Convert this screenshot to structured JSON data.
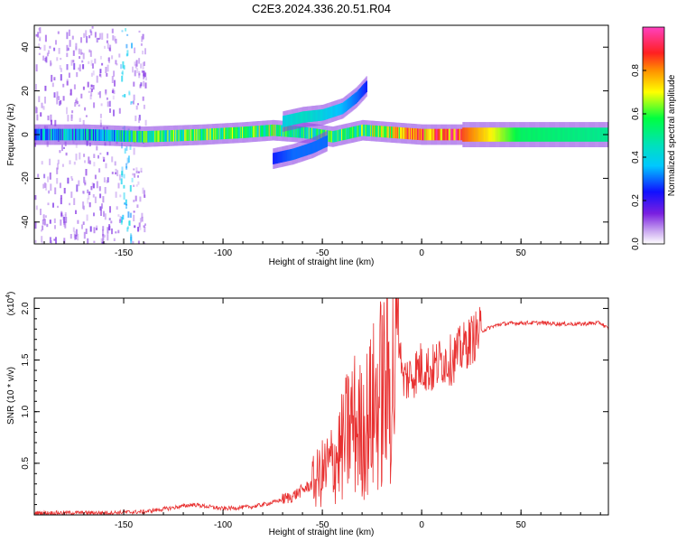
{
  "title": "C2E3.2024.336.20.51.R04",
  "chart_data": [
    {
      "type": "heatmap",
      "xlabel": "Height of straight line (km)",
      "ylabel": "Frequency (Hz)",
      "xlim": [
        -195,
        94
      ],
      "ylim": [
        -50,
        50
      ],
      "x_ticks": [
        -150,
        -100,
        -50,
        0,
        50
      ],
      "y_ticks": [
        -40,
        -20,
        0,
        20,
        40
      ],
      "colorbar": {
        "label": "Normalized spectral amplitude",
        "range": [
          0,
          1
        ],
        "ticks": [
          0.0,
          0.2,
          0.4,
          0.6,
          0.8
        ],
        "tick_labels": [
          "0.0",
          "0.2",
          "0.4",
          "0.6",
          "0.8"
        ]
      },
      "tracks": [
        {
          "x": [
            -195,
            -170,
            -140,
            -110,
            -90,
            -75,
            -60,
            -45,
            -30,
            -15,
            0,
            20,
            50,
            94
          ],
          "y": [
            0,
            0,
            -1,
            0,
            1,
            2,
            1,
            -1,
            2,
            1,
            0,
            0,
            0,
            0
          ],
          "amplitude": [
            0.3,
            0.35,
            0.5,
            0.55,
            0.55,
            0.6,
            0.5,
            0.5,
            0.55,
            0.7,
            0.8,
            0.85,
            0.55,
            0.5
          ]
        },
        {
          "x": [
            -70,
            -60,
            -50,
            -40,
            -33,
            -28
          ],
          "y": [
            6,
            8,
            9,
            12,
            17,
            22
          ],
          "amplitude": [
            0.4,
            0.45,
            0.4,
            0.35,
            0.3,
            0.25
          ]
        },
        {
          "x": [
            -75,
            -65,
            -55,
            -48
          ],
          "y": [
            -11,
            -9,
            -6,
            -3
          ],
          "amplitude": [
            0.25,
            0.3,
            0.3,
            0.3
          ]
        }
      ]
    },
    {
      "type": "line",
      "xlabel": "Height of straight line (km)",
      "ylabel": "SNR (10 * v/v)",
      "y_multiplier": "(x10",
      "y_multiplier_exp": "4",
      "xlim": [
        -195,
        94
      ],
      "ylim": [
        0,
        2.1
      ],
      "x_ticks": [
        -150,
        -100,
        -50,
        0,
        50
      ],
      "y_ticks": [
        0.5,
        1.0,
        1.5,
        2.0
      ],
      "y_tick_labels": [
        "0.5",
        "1.0",
        "1.5",
        "2.0"
      ],
      "series": [
        {
          "color": "#e83030",
          "x": [
            -195,
            -180,
            -160,
            -140,
            -125,
            -115,
            -100,
            -85,
            -75,
            -65,
            -55,
            -50,
            -45,
            -40,
            -35,
            -30,
            -25,
            -20,
            -15,
            -12,
            -10,
            -5,
            0,
            5,
            10,
            15,
            20,
            25,
            30,
            35,
            40,
            50,
            60,
            70,
            80,
            90,
            94
          ],
          "y": [
            0.02,
            0.02,
            0.02,
            0.03,
            0.07,
            0.1,
            0.06,
            0.08,
            0.12,
            0.18,
            0.3,
            0.4,
            0.5,
            0.65,
            0.9,
            0.8,
            1.0,
            1.2,
            1.3,
            1.5,
            1.3,
            1.35,
            1.45,
            1.4,
            1.5,
            1.5,
            1.6,
            1.7,
            1.78,
            1.82,
            1.85,
            1.86,
            1.86,
            1.85,
            1.85,
            1.86,
            1.8
          ]
        }
      ]
    }
  ]
}
